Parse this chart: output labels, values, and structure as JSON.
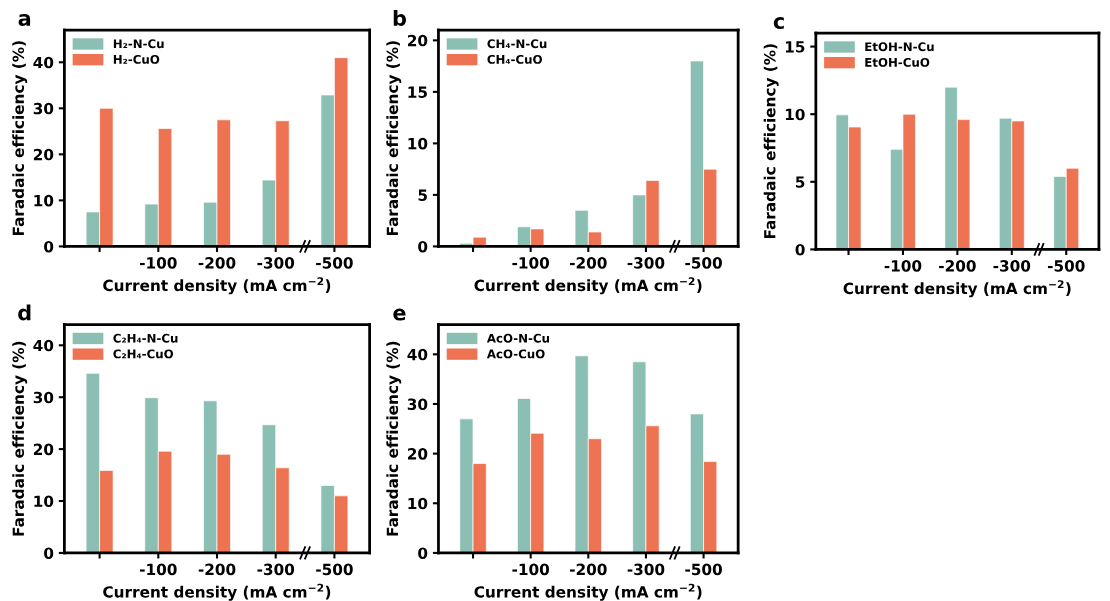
{
  "chart_data": [
    {
      "type": "bar",
      "title": "a",
      "xlabel": "Current density (mA cm$^{−2}$)",
      "ylabel": "Faradaic efficiency (%)",
      "categories": [
        null,
        "-100",
        "-200",
        "-300",
        "-500"
      ],
      "ylim": [
        0,
        47
      ],
      "yticks": [
        0,
        10,
        20,
        30,
        40
      ],
      "legend": "top left",
      "series": [
        {
          "name": "H₂-N-Cu",
          "color": "#8cbfb4",
          "values": [
            7.5,
            9.2,
            9.6,
            14.4,
            32.9
          ]
        },
        {
          "name": "H₂-CuO",
          "color": "#ee7352",
          "values": [
            30.0,
            25.6,
            27.5,
            27.3,
            41.0
          ]
        }
      ]
    },
    {
      "type": "bar",
      "title": "b",
      "xlabel": "Current density (mA cm$^{−2}$)",
      "ylabel": "Faradaic efficiency (%)",
      "categories": [
        null,
        "-100",
        "-200",
        "-300",
        "-500"
      ],
      "ylim": [
        0,
        21
      ],
      "yticks": [
        0,
        5,
        10,
        15,
        20
      ],
      "legend": "top left",
      "series": [
        {
          "name": "CH₄-N-Cu",
          "color": "#8cbfb4",
          "values": [
            0.3,
            1.9,
            3.5,
            5.0,
            18.0
          ]
        },
        {
          "name": "CH₄-CuO",
          "color": "#ee7352",
          "values": [
            0.9,
            1.7,
            1.4,
            6.4,
            7.5
          ]
        }
      ]
    },
    {
      "type": "bar",
      "title": "c",
      "xlabel": "Current density (mA cm$^{−2}$)",
      "ylabel": "Faradaic efficiency (%)",
      "categories": [
        null,
        "-100",
        "-200",
        "-300",
        "-500"
      ],
      "ylim": [
        0,
        16
      ],
      "yticks": [
        0,
        5,
        10,
        15
      ],
      "legend": "top left",
      "series": [
        {
          "name": "EtOH-N-Cu",
          "color": "#8cbfb4",
          "values": [
            9.95,
            7.4,
            12.0,
            9.7,
            5.4
          ]
        },
        {
          "name": "EtOH-CuO",
          "color": "#ee7352",
          "values": [
            9.05,
            10.0,
            9.6,
            9.5,
            6.0
          ]
        }
      ]
    },
    {
      "type": "bar",
      "title": "d",
      "xlabel": "Current density (mA cm$^{−2}$)",
      "ylabel": "Faradaic efficiency (%)",
      "categories": [
        null,
        "-100",
        "-200",
        "-300",
        "-500"
      ],
      "ylim": [
        0,
        44
      ],
      "yticks": [
        0,
        10,
        20,
        30,
        40
      ],
      "legend": "top left",
      "series": [
        {
          "name": "C₂H₄-N-Cu",
          "color": "#8cbfb4",
          "values": [
            34.6,
            29.9,
            29.3,
            24.7,
            13.0
          ]
        },
        {
          "name": "C₂H₄-CuO",
          "color": "#ee7352",
          "values": [
            15.9,
            19.6,
            19.0,
            16.4,
            11.0
          ]
        }
      ]
    },
    {
      "type": "bar",
      "title": "e",
      "xlabel": "Current density (mA cm$^{−2}$)",
      "ylabel": "Faradaic efficiency (%)",
      "categories": [
        null,
        "-100",
        "-200",
        "-300",
        "-500"
      ],
      "ylim": [
        0,
        46
      ],
      "yticks": [
        0,
        10,
        20,
        30,
        40
      ],
      "legend": "top left",
      "series": [
        {
          "name": "AcO-N-Cu",
          "color": "#8cbfb4",
          "values": [
            27.0,
            31.1,
            39.7,
            38.5,
            28.0
          ]
        },
        {
          "name": "AcO-CuO",
          "color": "#ee7352",
          "values": [
            18.0,
            24.1,
            23.0,
            25.6,
            18.4
          ]
        }
      ]
    }
  ]
}
